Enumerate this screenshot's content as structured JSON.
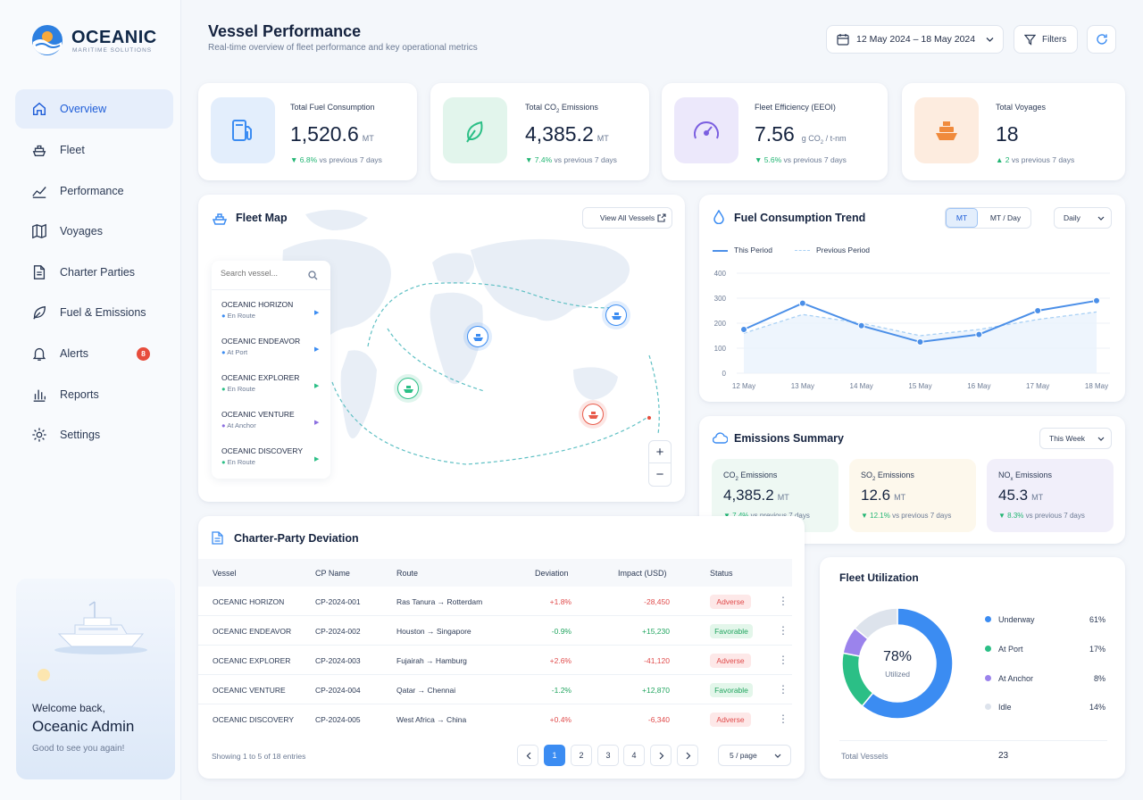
{
  "brand": {
    "name": "OCEANIC",
    "tagline": "MARITIME SOLUTIONS"
  },
  "sidebar": {
    "items": [
      {
        "label": "Overview",
        "icon": "home-icon",
        "active": true
      },
      {
        "label": "Fleet",
        "icon": "ship-icon"
      },
      {
        "label": "Performance",
        "icon": "trend-icon"
      },
      {
        "label": "Voyages",
        "icon": "map-icon"
      },
      {
        "label": "Charter Parties",
        "icon": "document-icon"
      },
      {
        "label": "Fuel & Emissions",
        "icon": "leaf-icon"
      },
      {
        "label": "Alerts",
        "icon": "bell-icon",
        "badge": "8"
      },
      {
        "label": "Reports",
        "icon": "bar-chart-icon"
      },
      {
        "label": "Settings",
        "icon": "gear-icon"
      }
    ],
    "welcome": {
      "greeting": "Welcome back,",
      "name": "Oceanic Admin",
      "message": "Good to see you again!"
    }
  },
  "header": {
    "title": "Vessel Performance",
    "subtitle": "Real-time overview of fleet performance and key operational metrics",
    "date_range": "12 May 2024 – 18 May 2024",
    "filters_label": "Filters"
  },
  "kpis": [
    {
      "label": "Total Fuel Consumption",
      "value": "1,520.6",
      "unit": "MT",
      "change": "6.8%",
      "change_text": "vs previous 7 days",
      "direction": "down",
      "color": "#e3eefc",
      "icon": "fuel-pump-icon"
    },
    {
      "label_pre": "Total CO",
      "label_sub": "2",
      "label_post": " Emissions",
      "value": "4,385.2",
      "unit": "MT",
      "change": "7.4%",
      "change_text": "vs previous 7 days",
      "direction": "down",
      "color": "#e2f5ec",
      "icon": "leaf-icon"
    },
    {
      "label": "Fleet Efficiency (EEOI)",
      "value": "7.56",
      "unit_pre": "g CO",
      "unit_sub": "2",
      "unit_post": " / t-nm",
      "change": "5.6%",
      "change_text": "vs previous 7 days",
      "direction": "down",
      "color": "#ece8fb",
      "icon": "gauge-icon"
    },
    {
      "label": "Total Voyages",
      "value": "18",
      "change": "2",
      "change_text": "vs previous 7 days",
      "direction": "up",
      "color": "#fdecdf",
      "icon": "ship-icon"
    }
  ],
  "map": {
    "title": "Fleet Map",
    "view_all": "View All Vessels",
    "search_placeholder": "Search vessel...",
    "vessels": [
      {
        "name": "OCEANIC HORIZON",
        "status": "En Route",
        "color": "#3b8cf2"
      },
      {
        "name": "OCEANIC ENDEAVOR",
        "status": "At Port",
        "color": "#3b8cf2"
      },
      {
        "name": "OCEANIC EXPLORER",
        "status": "En Route",
        "color": "#2bbf86"
      },
      {
        "name": "OCEANIC VENTURE",
        "status": "At Anchor",
        "color": "#8b6fe0"
      },
      {
        "name": "OCEANIC DISCOVERY",
        "status": "En Route",
        "color": "#2bbf86"
      }
    ],
    "zoom_in": "+",
    "zoom_out": "−"
  },
  "fuel_trend": {
    "title": "Fuel Consumption Trend",
    "toggle": [
      "MT",
      "MT / Day"
    ],
    "period": "Daily",
    "legend": [
      "This Period",
      "Previous Period"
    ]
  },
  "chart_data": {
    "type": "line",
    "x": [
      "12 May",
      "13 May",
      "14 May",
      "15 May",
      "16 May",
      "17 May",
      "18 May"
    ],
    "series": [
      {
        "name": "This Period",
        "values": [
          175,
          280,
          190,
          125,
          155,
          250,
          290
        ]
      },
      {
        "name": "Previous Period",
        "values": [
          160,
          235,
          200,
          150,
          175,
          215,
          245
        ]
      }
    ],
    "yticks": [
      0,
      100,
      200,
      300,
      400
    ],
    "ylim": [
      0,
      400
    ]
  },
  "emissions": {
    "title": "Emissions Summary",
    "period": "This Week",
    "items": [
      {
        "pre": "CO",
        "sub": "2",
        "post": " Emissions",
        "value": "4,385.2",
        "unit": "MT",
        "change": "7.4%",
        "change_text": "vs previous 7 days",
        "bg": "#eef8f3"
      },
      {
        "pre": "SO",
        "sub": "2",
        "post": " Emissions",
        "value": "12.6",
        "unit": "MT",
        "change": "12.1%",
        "change_text": "vs previous 7 days",
        "bg": "#fdf8ec"
      },
      {
        "pre": "NO",
        "sub": "x",
        "post": " Emissions",
        "value": "45.3",
        "unit": "MT",
        "change": "8.3%",
        "change_text": "vs previous 7 days",
        "bg": "#f1effa"
      }
    ]
  },
  "charter": {
    "title": "Charter-Party Deviation",
    "columns": [
      "Vessel",
      "CP Name",
      "Route",
      "Deviation",
      "Impact (USD)",
      "Status"
    ],
    "rows": [
      {
        "vessel": "OCEANIC HORIZON",
        "cp": "CP-2024-001",
        "route": "Ras Tanura → Rotterdam",
        "deviation": "+1.8%",
        "impact": "-28,450",
        "status": "Adverse"
      },
      {
        "vessel": "OCEANIC ENDEAVOR",
        "cp": "CP-2024-002",
        "route": "Houston → Singapore",
        "deviation": "-0.9%",
        "impact": "+15,230",
        "status": "Favorable"
      },
      {
        "vessel": "OCEANIC EXPLORER",
        "cp": "CP-2024-003",
        "route": "Fujairah → Hamburg",
        "deviation": "+2.6%",
        "impact": "-41,120",
        "status": "Adverse"
      },
      {
        "vessel": "OCEANIC VENTURE",
        "cp": "CP-2024-004",
        "route": "Qatar → Chennai",
        "deviation": "-1.2%",
        "impact": "+12,870",
        "status": "Favorable"
      },
      {
        "vessel": "OCEANIC DISCOVERY",
        "cp": "CP-2024-005",
        "route": "West Africa → China",
        "deviation": "+0.4%",
        "impact": "-6,340",
        "status": "Adverse"
      }
    ],
    "showing": "Showing 1 to 5 of 18 entries",
    "pages": [
      "1",
      "2",
      "3",
      "4"
    ],
    "page_size": "5 / page"
  },
  "utilization": {
    "title": "Fleet Utilization",
    "center_value": "78%",
    "center_label": "Utilized",
    "segments": [
      {
        "label": "Underway",
        "pct": "61%",
        "value": 61,
        "color": "#3b8cf2"
      },
      {
        "label": "At Port",
        "pct": "17%",
        "value": 17,
        "color": "#2bbf86"
      },
      {
        "label": "At Anchor",
        "pct": "8%",
        "value": 8,
        "color": "#9b83ec"
      },
      {
        "label": "Idle",
        "pct": "14%",
        "value": 14,
        "color": "#dde3ec"
      }
    ],
    "total_label": "Total Vessels",
    "total_value": "23"
  }
}
